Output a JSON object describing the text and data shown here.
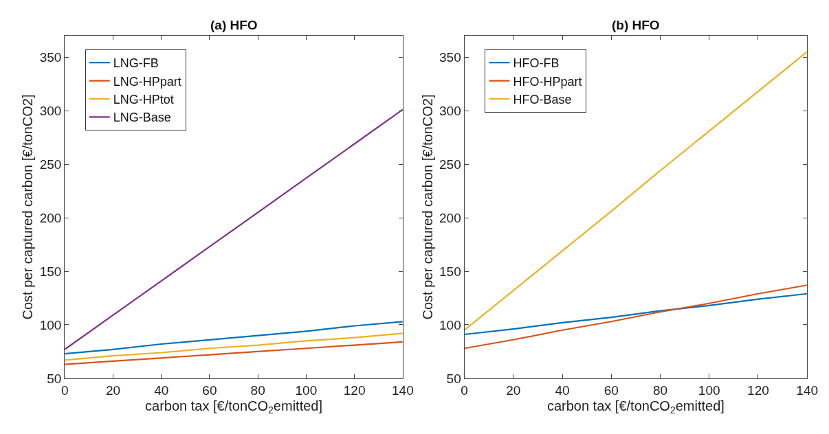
{
  "chart_data": [
    {
      "type": "line",
      "title": "(a) HFO",
      "xlabel": "carbon tax [€/tonCO$_{2}$emitted]",
      "ylabel": "Cost per captured carbon [€/tonCO2]",
      "x": [
        0,
        20,
        40,
        60,
        80,
        100,
        120,
        140
      ],
      "xlim": [
        0,
        140
      ],
      "xticks": [
        0,
        20,
        40,
        60,
        80,
        100,
        120,
        140
      ],
      "ylim": [
        50,
        370
      ],
      "yticks": [
        50,
        100,
        150,
        200,
        250,
        300,
        350
      ],
      "legend": "top left",
      "line_style": "solid",
      "series": [
        {
          "name": "LNG-FB",
          "color": "#0072bd",
          "values": [
            73,
            77,
            82,
            86,
            90,
            94,
            99,
            103
          ]
        },
        {
          "name": "LNG-HPpart",
          "color": "#d95319",
          "values": [
            63,
            66,
            69,
            72,
            75,
            78,
            81,
            84
          ]
        },
        {
          "name": "LNG-HPtot",
          "color": "#edb120",
          "values": [
            67,
            71,
            74,
            78,
            81,
            85,
            88,
            92
          ]
        },
        {
          "name": "LNG-Base",
          "color": "#7e2f8e",
          "values": [
            77,
            109,
            141,
            173,
            205,
            237,
            269,
            301
          ]
        }
      ]
    },
    {
      "type": "line",
      "title": "(b) HFO",
      "xlabel": "carbon tax [€/tonCO$_{2}$emitted]",
      "ylabel": "Cost per captured carbon [€/tonCO2]",
      "x": [
        0,
        20,
        40,
        60,
        80,
        100,
        120,
        140
      ],
      "xlim": [
        0,
        140
      ],
      "xticks": [
        0,
        20,
        40,
        60,
        80,
        100,
        120,
        140
      ],
      "ylim": [
        50,
        370
      ],
      "yticks": [
        50,
        100,
        150,
        200,
        250,
        300,
        350
      ],
      "legend": "top left",
      "line_style": "solid",
      "series": [
        {
          "name": "HFO-FB",
          "color": "#0072bd",
          "values": [
            91,
            96,
            102,
            107,
            113,
            118,
            124,
            129
          ]
        },
        {
          "name": "HFO-HPpart",
          "color": "#d95319",
          "values": [
            78,
            86,
            95,
            103,
            112,
            120,
            129,
            137
          ]
        },
        {
          "name": "HFO-Base",
          "color": "#edb120",
          "values": [
            95,
            132,
            169,
            206,
            244,
            281,
            318,
            355
          ]
        }
      ]
    }
  ]
}
